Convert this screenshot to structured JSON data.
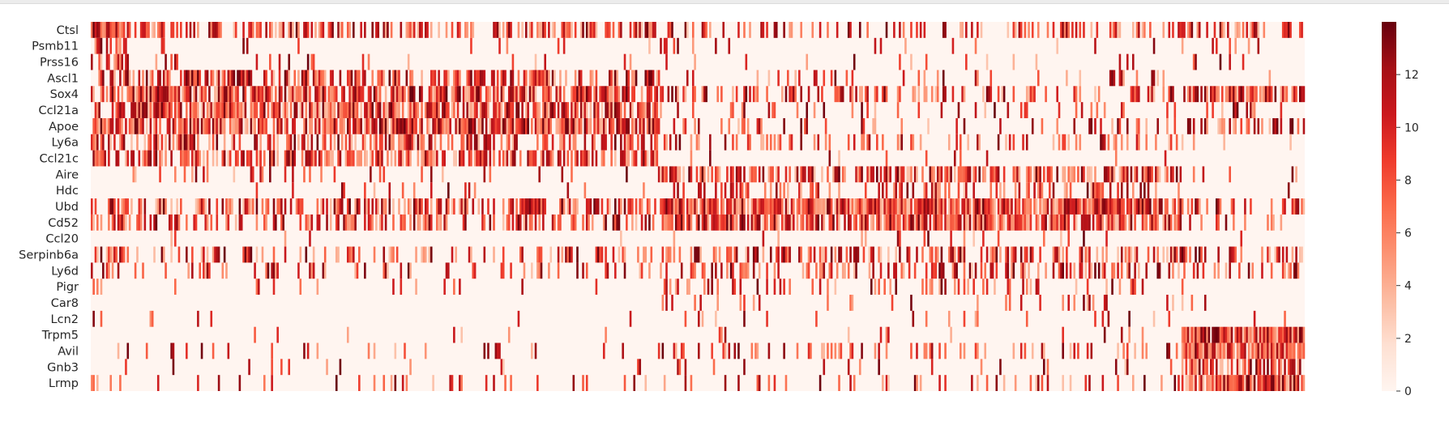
{
  "chart_data": {
    "type": "heatmap",
    "title": "",
    "xlabel": "",
    "ylabel": "",
    "rows": [
      "Ctsl",
      "Psmb11",
      "Prss16",
      "Ascl1",
      "Sox4",
      "Ccl21a",
      "Apoe",
      "Ly6a",
      "Ccl21c",
      "Aire",
      "Hdc",
      "Ubd",
      "Cd52",
      "Ccl20",
      "Serpinb6a",
      "Ly6d",
      "Pigr",
      "Car8",
      "Lcn2",
      "Trpm5",
      "Avil",
      "Gnb3",
      "Lrmp"
    ],
    "n_cells": 640,
    "value_range": [
      0,
      14
    ],
    "colorbar": {
      "ticks": [
        0,
        2,
        4,
        6,
        8,
        10,
        12
      ],
      "colormap": "Reds",
      "colors": [
        "#fff5f0",
        "#fee0d2",
        "#fcbba1",
        "#fc9272",
        "#fb6a4a",
        "#ef3b2c",
        "#cb181d",
        "#a50f15",
        "#67000d"
      ]
    },
    "cell_groups": [
      {
        "name_hidden": true,
        "from": 0,
        "to": 20
      },
      {
        "name_hidden": true,
        "from": 20,
        "to": 300
      },
      {
        "name_hidden": true,
        "from": 300,
        "to": 575
      },
      {
        "name_hidden": true,
        "from": 575,
        "to": 640
      }
    ],
    "row_group_density": {
      "Ctsl": [
        0.95,
        0.55,
        0.3,
        0.45
      ],
      "Psmb11": [
        0.55,
        0.03,
        0.05,
        0.1
      ],
      "Prss16": [
        0.55,
        0.05,
        0.06,
        0.05
      ],
      "Ascl1": [
        0.5,
        0.6,
        0.12,
        0.04
      ],
      "Sox4": [
        0.5,
        0.8,
        0.3,
        0.7
      ],
      "Ccl21a": [
        0.4,
        0.75,
        0.12,
        0.15
      ],
      "Apoe": [
        0.7,
        0.78,
        0.2,
        0.25
      ],
      "Ly6a": [
        0.5,
        0.5,
        0.22,
        0.08
      ],
      "Ccl21c": [
        0.6,
        0.6,
        0.05,
        0.03
      ],
      "Aire": [
        0.05,
        0.1,
        0.6,
        0.03
      ],
      "Hdc": [
        0.1,
        0.05,
        0.3,
        0.02
      ],
      "Ubd": [
        0.6,
        0.55,
        0.9,
        0.3
      ],
      "Cd52": [
        0.45,
        0.4,
        0.8,
        0.15
      ],
      "Ccl20": [
        0.02,
        0.02,
        0.1,
        0.02
      ],
      "Serpinb6a": [
        0.55,
        0.3,
        0.5,
        0.4
      ],
      "Ly6d": [
        0.4,
        0.2,
        0.4,
        0.15
      ],
      "Pigr": [
        0.2,
        0.05,
        0.2,
        0.05
      ],
      "Car8": [
        0.02,
        0.01,
        0.1,
        0.02
      ],
      "Lcn2": [
        0.1,
        0.03,
        0.08,
        0.03
      ],
      "Trpm5": [
        0.05,
        0.03,
        0.05,
        0.95
      ],
      "Avil": [
        0.2,
        0.1,
        0.2,
        0.9
      ],
      "Gnb3": [
        0.1,
        0.04,
        0.1,
        0.7
      ],
      "Lrmp": [
        0.25,
        0.08,
        0.2,
        0.9
      ]
    }
  }
}
